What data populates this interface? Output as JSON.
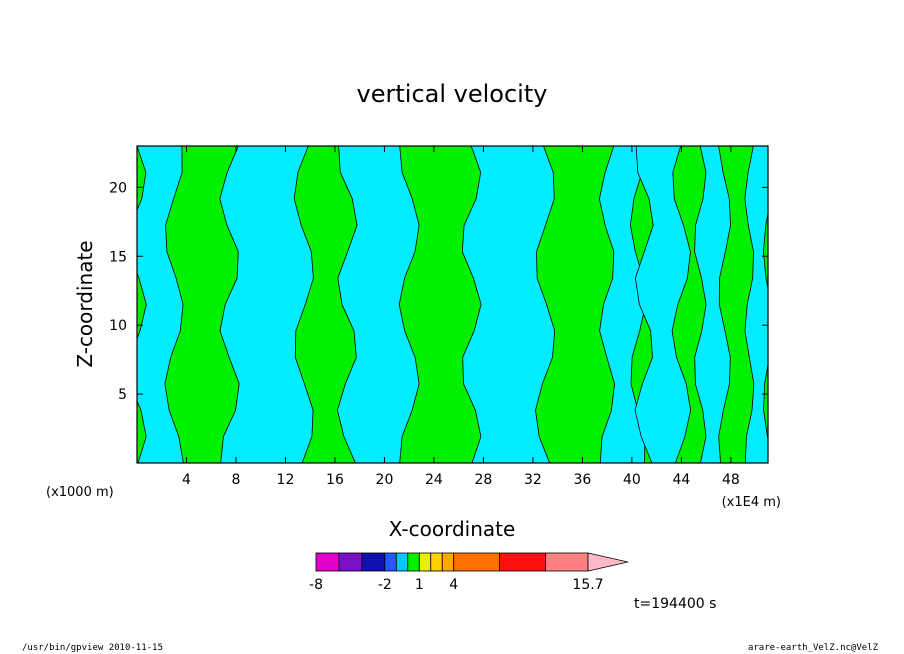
{
  "chart_data": {
    "type": "heatmap",
    "title": "vertical velocity",
    "xlabel": "X-coordinate",
    "ylabel": "Z-coordinate",
    "x_unit_left": "(x1000 m)",
    "x_unit_right": "(x1E4 m)",
    "xlim": [
      0,
      51
    ],
    "ylim": [
      0,
      23
    ],
    "x_ticks": [
      4,
      8,
      12,
      16,
      20,
      24,
      28,
      32,
      36,
      40,
      44,
      48
    ],
    "y_ticks": [
      5,
      10,
      15,
      20
    ],
    "colorbar": {
      "levels": [
        -8,
        -6,
        -4,
        -2,
        -1,
        0,
        1,
        2,
        3,
        4,
        8,
        12,
        15.7
      ],
      "colors": [
        "#e000c8",
        "#7a10c8",
        "#1010b0",
        "#1e5aff",
        "#00c8ff",
        "#00f000",
        "#e8f000",
        "#ffd000",
        "#ffa800",
        "#ff7000",
        "#ff1010",
        "#ff8080"
      ],
      "extend_color": "#ffb8c8",
      "labels": [
        "-8",
        "-2",
        "1",
        "4",
        "15.7"
      ]
    },
    "regions": {
      "dominant_fill": "#00f000",
      "secondary_fill": "#00ecff",
      "cyan_x_ranges": [
        [
          0,
          3
        ],
        [
          7.5,
          13.5
        ],
        [
          17,
          22
        ],
        [
          27,
          33
        ],
        [
          38,
          40.5
        ],
        [
          41,
          44
        ],
        [
          45.5,
          47.5
        ],
        [
          49.5,
          51
        ]
      ]
    },
    "time_label": "t=194400 s",
    "grid": false,
    "legend_position": "bottom"
  },
  "footer": {
    "left": "/usr/bin/gpview  2010-11-15",
    "right": "arare-earth_VelZ.nc@VelZ"
  }
}
